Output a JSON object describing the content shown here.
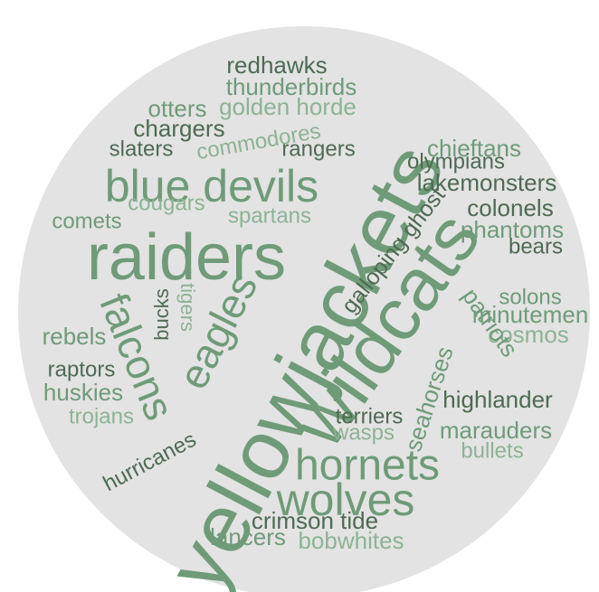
{
  "background_color": "#e3e3e3",
  "palette": {
    "dark": "#4d6b52",
    "mid": "#6f9b78",
    "light": "#8db393"
  },
  "words": [
    {
      "id": "yellowjackets",
      "text": "yellowjackets",
      "tone": "mid"
    },
    {
      "id": "wildcats",
      "text": "wildcats",
      "tone": "mid"
    },
    {
      "id": "raiders",
      "text": "raiders",
      "tone": "mid"
    },
    {
      "id": "blue-devils",
      "text": "blue devils",
      "tone": "mid"
    },
    {
      "id": "hornets",
      "text": "hornets",
      "tone": "mid"
    },
    {
      "id": "wolves",
      "text": "wolves",
      "tone": "mid"
    },
    {
      "id": "eagles",
      "text": "eagles",
      "tone": "mid"
    },
    {
      "id": "falcons",
      "text": "falcons",
      "tone": "mid"
    },
    {
      "id": "galloping-ghost",
      "text": "galloping ghost",
      "tone": "dark"
    },
    {
      "id": "redhawks",
      "text": "redhawks",
      "tone": "dark"
    },
    {
      "id": "thunderbirds",
      "text": "thunderbirds",
      "tone": "mid"
    },
    {
      "id": "otters",
      "text": "otters",
      "tone": "mid"
    },
    {
      "id": "golden-horde",
      "text": "golden horde",
      "tone": "light"
    },
    {
      "id": "chargers",
      "text": "chargers",
      "tone": "dark"
    },
    {
      "id": "commodores",
      "text": "commodores",
      "tone": "light"
    },
    {
      "id": "slaters",
      "text": "slaters",
      "tone": "dark"
    },
    {
      "id": "rangers",
      "text": "rangers",
      "tone": "dark"
    },
    {
      "id": "chieftans",
      "text": "chieftans",
      "tone": "mid"
    },
    {
      "id": "olympians",
      "text": "olympians",
      "tone": "dark"
    },
    {
      "id": "lakemonsters",
      "text": "lakemonsters",
      "tone": "dark"
    },
    {
      "id": "colonels",
      "text": "colonels",
      "tone": "dark"
    },
    {
      "id": "phantoms",
      "text": "phantoms",
      "tone": "mid"
    },
    {
      "id": "bears",
      "text": "bears",
      "tone": "dark"
    },
    {
      "id": "cougars",
      "text": "cougars",
      "tone": "light"
    },
    {
      "id": "spartans",
      "text": "spartans",
      "tone": "light"
    },
    {
      "id": "comets",
      "text": "comets",
      "tone": "mid"
    },
    {
      "id": "solons",
      "text": "solons",
      "tone": "mid"
    },
    {
      "id": "minutemen",
      "text": "minutemen",
      "tone": "mid"
    },
    {
      "id": "cosmos",
      "text": "cosmos",
      "tone": "light"
    },
    {
      "id": "patriots",
      "text": "patriots",
      "tone": "mid"
    },
    {
      "id": "seahorses",
      "text": "seahorses",
      "tone": "mid"
    },
    {
      "id": "tigers",
      "text": "tigers",
      "tone": "light"
    },
    {
      "id": "bucks",
      "text": "bucks",
      "tone": "dark"
    },
    {
      "id": "rebels",
      "text": "rebels",
      "tone": "mid"
    },
    {
      "id": "raptors",
      "text": "raptors",
      "tone": "dark"
    },
    {
      "id": "huskies",
      "text": "huskies",
      "tone": "mid"
    },
    {
      "id": "trojans",
      "text": "trojans",
      "tone": "light"
    },
    {
      "id": "terriers",
      "text": "terriers",
      "tone": "dark"
    },
    {
      "id": "wasps",
      "text": "wasps",
      "tone": "light"
    },
    {
      "id": "highlander",
      "text": "highlander",
      "tone": "dark"
    },
    {
      "id": "marauders",
      "text": "marauders",
      "tone": "mid"
    },
    {
      "id": "bullets",
      "text": "bullets",
      "tone": "light"
    },
    {
      "id": "hurricanes",
      "text": "hurricanes",
      "tone": "dark"
    },
    {
      "id": "crimson-tide",
      "text": "crimson tide",
      "tone": "dark"
    },
    {
      "id": "lancers",
      "text": "lancers",
      "tone": "mid"
    },
    {
      "id": "bobwhites",
      "text": "bobwhites",
      "tone": "light"
    }
  ]
}
